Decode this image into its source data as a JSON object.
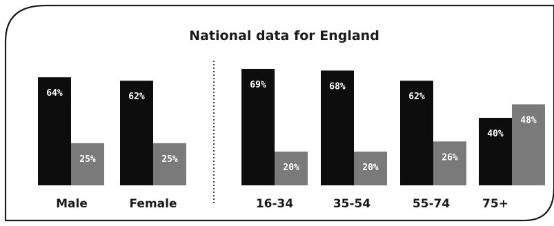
{
  "chart_data": {
    "type": "bar",
    "title": "National data for England",
    "categories": [
      "Male",
      "Female",
      "16-34",
      "35-54",
      "55-74",
      "75+"
    ],
    "series": [
      {
        "values": [
          64,
          62,
          69,
          68,
          62,
          40
        ],
        "labels": [
          "64%",
          "62%",
          "69%",
          "68%",
          "62%",
          "40%"
        ],
        "color": "#0d0d0d"
      },
      {
        "values": [
          25,
          25,
          20,
          20,
          26,
          48
        ],
        "labels": [
          "25%",
          "25%",
          "20%",
          "20%",
          "26%",
          "48%"
        ],
        "color": "#7a7a7a"
      }
    ],
    "ylim": [
      0,
      100
    ],
    "grid": false,
    "group_divider_after": 1
  }
}
